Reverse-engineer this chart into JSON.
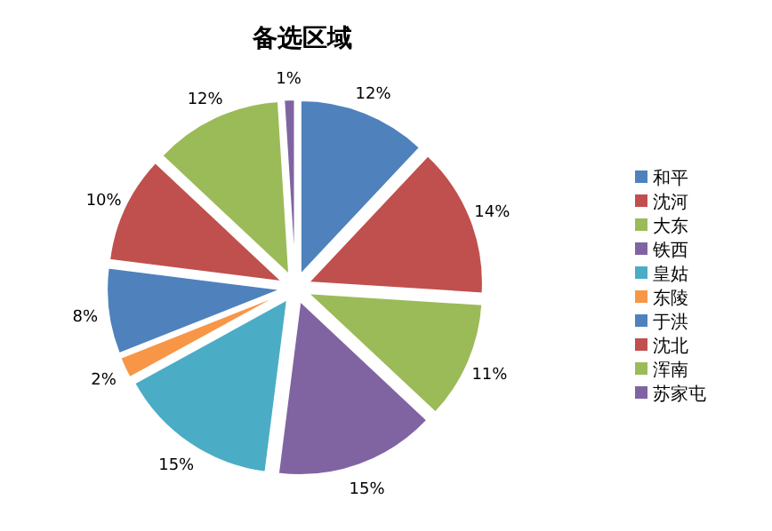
{
  "chart_data": {
    "type": "pie",
    "title": "备选区域",
    "categories": [
      "和平",
      "沈河",
      "大东",
      "铁西",
      "皇姑",
      "东陵",
      "于洪",
      "沈北",
      "浑南",
      "苏家屯"
    ],
    "values": [
      12,
      14,
      11,
      15,
      15,
      2,
      8,
      10,
      12,
      1
    ],
    "colors": [
      "#4f81bd",
      "#c0504d",
      "#9bbb59",
      "#8064a2",
      "#4bacc6",
      "#f79646",
      "#4f81bd",
      "#c0504d",
      "#9bbb59",
      "#8064a2"
    ],
    "value_labels": [
      "12%",
      "14%",
      "11%",
      "15%",
      "15%",
      "2%",
      "8%",
      "10%",
      "12%",
      "1%"
    ],
    "legend": "right"
  }
}
